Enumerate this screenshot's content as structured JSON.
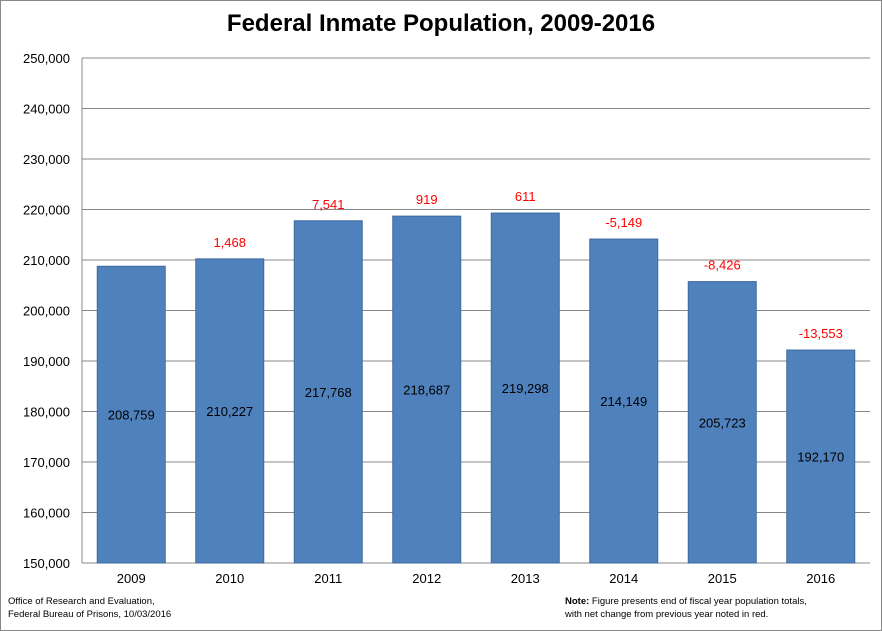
{
  "chart_data": {
    "type": "bar",
    "title": "Federal Inmate Population, 2009-2016",
    "categories": [
      "2009",
      "2010",
      "2011",
      "2012",
      "2013",
      "2014",
      "2015",
      "2016"
    ],
    "values": [
      208759,
      210227,
      217768,
      218687,
      219298,
      214149,
      205723,
      192170
    ],
    "value_labels": [
      "208,759",
      "210,227",
      "217,768",
      "218,687",
      "219,298",
      "214,149",
      "205,723",
      "192,170"
    ],
    "net_change_labels": [
      "",
      "1,468",
      "7,541",
      "919",
      "611",
      "-5,149",
      "-8,426",
      "-13,553"
    ],
    "ylim": [
      150000,
      250000
    ],
    "yticks": [
      "150,000",
      "160,000",
      "170,000",
      "180,000",
      "190,000",
      "200,000",
      "210,000",
      "220,000",
      "230,000",
      "240,000",
      "250,000"
    ],
    "grid": true,
    "bar_color": "#4f81bd",
    "change_color": "#ff0000"
  },
  "footer": {
    "source_line1": "Office of Research and Evaluation,",
    "source_line2": "Federal Bureau of Prisons, 10/03/2016",
    "note_label": "Note:",
    "note_line1": " Figure presents end of fiscal year population totals,",
    "note_line2": "with net change from previous year noted in red."
  }
}
